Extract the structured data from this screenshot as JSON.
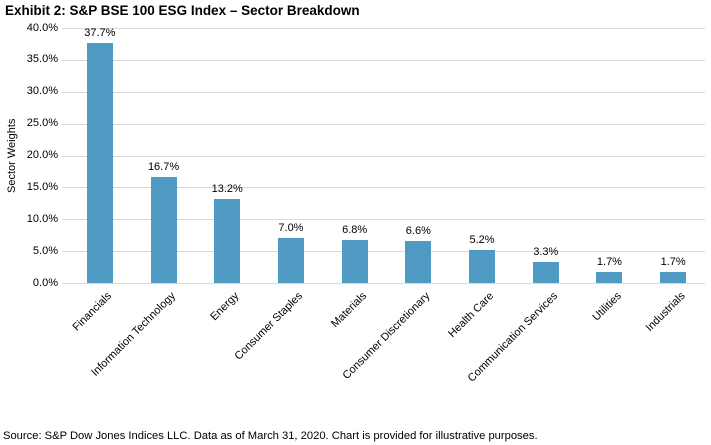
{
  "title": "Exhibit 2: S&P BSE 100 ESG Index – Sector Breakdown",
  "chart_data": {
    "type": "bar",
    "title": "Exhibit 2: S&P BSE 100 ESG Index – Sector Breakdown",
    "categories": [
      "Financials",
      "Information Technology",
      "Energy",
      "Consumer Staples",
      "Materials",
      "Consumer Discretionary",
      "Health Care",
      "Communication Services",
      "Utilities",
      "Industrials"
    ],
    "values": [
      37.7,
      16.7,
      13.2,
      7.0,
      6.8,
      6.6,
      5.2,
      3.3,
      1.7,
      1.7
    ],
    "value_labels": [
      "37.7%",
      "16.7%",
      "13.2%",
      "7.0%",
      "6.8%",
      "6.6%",
      "5.2%",
      "3.3%",
      "1.7%",
      "1.7%"
    ],
    "xlabel": "",
    "ylabel": "Sector Weights",
    "ylim": [
      0,
      40
    ],
    "ytick_step": 5,
    "ytick_labels": [
      "40.0%",
      "35.0%",
      "30.0%",
      "25.0%",
      "20.0%",
      "15.0%",
      "10.0%",
      "5.0%",
      "0.0%"
    ],
    "grid": true,
    "legend": "none",
    "bar_color": "#4E9AC2",
    "gridline_color": "#D9D9D9",
    "label_color": "#000000"
  },
  "footer": {
    "source": "Source: S&P Dow Jones Indices LLC. Data as of March 31, 2020. Chart is provided for illustrative purposes."
  }
}
